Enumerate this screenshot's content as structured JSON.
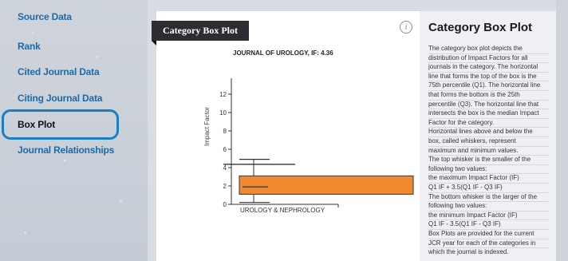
{
  "sidebar": {
    "items": [
      {
        "label": "Source Data"
      },
      {
        "label": "Rank"
      },
      {
        "label": "Cited Journal Data"
      },
      {
        "label": "Citing Journal Data"
      },
      {
        "label": "Box Plot",
        "active": true
      },
      {
        "label": "Journal Relationships"
      }
    ]
  },
  "main": {
    "tab_label": "Category Box Plot",
    "info_icon": "info-icon",
    "journal_title": "JOURNAL OF UROLOGY, IF: 4.36"
  },
  "chart_data": {
    "type": "box",
    "ylabel": "Impact Factor",
    "category": "UROLOGY & NEPHROLOGY",
    "yticks": [
      0,
      2,
      4,
      6,
      8,
      10,
      12
    ],
    "ylim": [
      0,
      14
    ],
    "box": {
      "q1": 1.1,
      "median": 1.9,
      "q3": 3.1,
      "whisker_low": 0.2,
      "whisker_high": 4.9
    },
    "journal_marker": 4.36,
    "box_color": "#f08a30"
  },
  "description": {
    "title": "Category Box Plot",
    "lines": [
      "The category box plot depicts the",
      "distribution of Impact Factors for all",
      "journals in the category. The horizontal",
      "line that forms the top of the box is the",
      "75th percentile (Q1). The horizontal line",
      "that forms the bottom is the 25th",
      "percentile (Q3). The horizontal line that",
      "intersects the box is the median Impact",
      "Factor for the category.",
      "Horizontal lines above and below the",
      "box, called whiskers, represent",
      "maximum and minimum values.",
      "The top whisker is the smaller of the",
      "following two values:",
      "the maximum Impact Factor (IF)",
      "Q1 IF + 3.5(Q1 IF - Q3 IF)",
      "The bottom whisker is the larger of the",
      "following two values:",
      "the minimum Impact Factor (IF)",
      "Q1 IF - 3.5(Q1 IF - Q3 IF)",
      "Box Plots are provided for the current",
      "JCR year for each of the categories in",
      "which the journal is indexed."
    ]
  }
}
